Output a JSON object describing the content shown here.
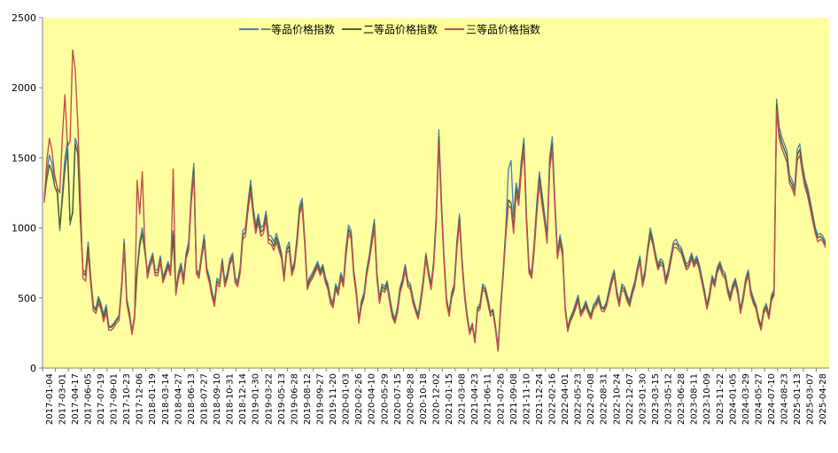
{
  "chart_data": {
    "type": "line",
    "title": "",
    "xlabel": "",
    "ylabel": "",
    "ylim": [
      0,
      2500
    ],
    "y_ticks": [
      0,
      500,
      1000,
      1500,
      2000,
      2500
    ],
    "grid": false,
    "legend_position": "top-center",
    "plot_background": "#FFFFA0",
    "x_tick_labels": [
      "2017-01-04",
      "2017-03-01",
      "2017-04-17",
      "2017-06-05",
      "2017-07-19",
      "2017-09-01",
      "2017-10-23",
      "2017-12-06",
      "2018-01-19",
      "2018-03-14",
      "2018-04-27",
      "2018-06-13",
      "2018-07-27",
      "2018-09-10",
      "2018-10-31",
      "2018-12-14",
      "2019-01-30",
      "2019-03-22",
      "2019-05-13",
      "2019-06-28",
      "2019-08-12",
      "2019-09-27",
      "2019-11-20",
      "2020-01-03",
      "2020-02-26",
      "2020-04-10",
      "2020-05-29",
      "2020-07-15",
      "2020-08-28",
      "2020-10-18",
      "2020-12-02",
      "2021-01-15",
      "2021-03-08",
      "2021-04-23",
      "2021-06-11",
      "2021-07-26",
      "2021-09-08",
      "2021-11-10",
      "2021-12-24",
      "2022-02-16",
      "2022-04-01",
      "2022-05-23",
      "2022-07-08",
      "2022-08-31",
      "2022-10-24",
      "2022-12-07",
      "2023-01-30",
      "2023-03-15",
      "2023-05-12",
      "2023-06-28",
      "2023-08-11",
      "2023-10-09",
      "2023-11-22",
      "2024-01-05",
      "2024-03-29",
      "2024-05-27",
      "2024-07-10",
      "2024-08-23",
      "2025-01-13",
      "2025-03-07",
      "2025-04-28"
    ],
    "series": [
      {
        "name": "一等品价格指数",
        "color": "#4F81BD",
        "values": [
          1230,
          1400,
          1520,
          1460,
          1350,
          1300,
          980,
          1250,
          1500,
          1620,
          1020,
          1120,
          1640,
          1580,
          1050,
          700,
          680,
          900,
          650,
          450,
          420,
          510,
          460,
          380,
          450,
          300,
          300,
          320,
          350,
          380,
          600,
          920,
          500,
          400,
          260,
          380,
          700,
          900,
          1000,
          860,
          690,
          760,
          820,
          700,
          700,
          800,
          650,
          700,
          760,
          700,
          980,
          560,
          680,
          750,
          640,
          820,
          900,
          1250,
          1460,
          700,
          680,
          820,
          950,
          720,
          650,
          550,
          480,
          640,
          620,
          780,
          620,
          680,
          780,
          820,
          650,
          620,
          720,
          980,
          1000,
          1180,
          1340,
          1150,
          1020,
          1100,
          1000,
          1020,
          1120,
          950,
          940,
          900,
          960,
          900,
          820,
          660,
          860,
          900,
          700,
          760,
          940,
          1160,
          1210,
          920,
          600,
          650,
          680,
          720,
          760,
          700,
          740,
          650,
          600,
          500,
          470,
          600,
          560,
          680,
          620,
          860,
          1020,
          980,
          700,
          560,
          350,
          480,
          540,
          700,
          800,
          940,
          1060,
          680,
          500,
          600,
          580,
          620,
          500,
          400,
          350,
          440,
          580,
          640,
          740,
          620,
          600,
          500,
          430,
          380,
          500,
          640,
          820,
          700,
          600,
          760,
          1100,
          1700,
          1200,
          800,
          500,
          400,
          540,
          600,
          900,
          1100,
          780,
          540,
          380,
          260,
          320,
          200,
          430,
          460,
          600,
          580,
          500,
          400,
          420,
          300,
          140,
          460,
          700,
          1000,
          1420,
          1480,
          1080,
          1320,
          1240,
          1480,
          1640,
          1100,
          720,
          680,
          900,
          1180,
          1400,
          1250,
          1100,
          950,
          1500,
          1650,
          1200,
          820,
          950,
          850,
          440,
          290,
          360,
          400,
          460,
          520,
          400,
          430,
          480,
          420,
          380,
          450,
          480,
          520,
          440,
          430,
          470,
          560,
          640,
          700,
          560,
          470,
          600,
          580,
          520,
          480,
          560,
          620,
          720,
          800,
          620,
          700,
          860,
          1000,
          920,
          820,
          740,
          780,
          760,
          640,
          700,
          800,
          900,
          920,
          880,
          860,
          800,
          740,
          760,
          820,
          760,
          800,
          740,
          650,
          560,
          450,
          540,
          660,
          620,
          720,
          760,
          700,
          680,
          580,
          520,
          600,
          640,
          560,
          420,
          520,
          640,
          700,
          560,
          500,
          450,
          360,
          300,
          420,
          460,
          380,
          520,
          560,
          1920,
          1720,
          1650,
          1600,
          1550,
          1380,
          1340,
          1290,
          1560,
          1600,
          1450,
          1350,
          1290,
          1200,
          1100,
          1000,
          950,
          960,
          940,
          900
        ]
      },
      {
        "name": "二等品价格指数",
        "color": "#4F6228",
        "values": [
          1200,
          1350,
          1450,
          1400,
          1300,
          1250,
          1000,
          1200,
          1420,
          1560,
          1050,
          1100,
          1600,
          1530,
          1050,
          680,
          660,
          870,
          630,
          440,
          410,
          490,
          440,
          360,
          430,
          290,
          290,
          310,
          340,
          360,
          580,
          890,
          480,
          380,
          250,
          360,
          680,
          870,
          960,
          830,
          670,
          740,
          800,
          680,
          680,
          780,
          630,
          680,
          740,
          680,
          950,
          540,
          660,
          730,
          620,
          800,
          870,
          1210,
          1420,
          690,
          660,
          800,
          920,
          700,
          630,
          530,
          460,
          620,
          600,
          760,
          600,
          660,
          760,
          800,
          630,
          600,
          700,
          950,
          970,
          1150,
          1300,
          1120,
          990,
          1070,
          970,
          990,
          1090,
          920,
          910,
          870,
          930,
          870,
          800,
          640,
          840,
          870,
          680,
          740,
          910,
          1130,
          1180,
          900,
          580,
          630,
          660,
          700,
          740,
          680,
          720,
          630,
          580,
          480,
          450,
          580,
          540,
          660,
          600,
          830,
          990,
          950,
          680,
          540,
          340,
          460,
          520,
          680,
          780,
          910,
          1030,
          660,
          480,
          580,
          560,
          600,
          480,
          380,
          340,
          420,
          560,
          620,
          720,
          600,
          580,
          480,
          420,
          370,
          480,
          620,
          800,
          680,
          580,
          740,
          1070,
          1650,
          1170,
          780,
          480,
          390,
          520,
          580,
          870,
          1070,
          760,
          520,
          370,
          250,
          310,
          190,
          420,
          440,
          580,
          560,
          480,
          390,
          410,
          290,
          130,
          440,
          680,
          970,
          1200,
          1180,
          1000,
          1280,
          1200,
          1440,
          1600,
          1070,
          700,
          660,
          870,
          1140,
          1360,
          1210,
          1070,
          920,
          1460,
          1600,
          1170,
          800,
          920,
          830,
          430,
          280,
          350,
          390,
          440,
          500,
          390,
          420,
          460,
          410,
          370,
          440,
          460,
          500,
          430,
          420,
          460,
          540,
          620,
          680,
          540,
          460,
          580,
          560,
          500,
          460,
          540,
          600,
          700,
          780,
          600,
          680,
          840,
          970,
          900,
          800,
          720,
          760,
          740,
          620,
          680,
          780,
          880,
          890,
          860,
          840,
          780,
          720,
          740,
          800,
          740,
          780,
          720,
          630,
          540,
          440,
          520,
          640,
          600,
          700,
          740,
          680,
          660,
          560,
          500,
          580,
          620,
          540,
          410,
          500,
          620,
          680,
          540,
          480,
          440,
          350,
          290,
          410,
          440,
          370,
          500,
          540,
          1880,
          1680,
          1610,
          1560,
          1510,
          1350,
          1310,
          1260,
          1520,
          1560,
          1420,
          1320,
          1260,
          1170,
          1080,
          980,
          930,
          940,
          920,
          880
        ]
      },
      {
        "name": "三等品价格指数",
        "color": "#C0504D",
        "values": [
          1180,
          1480,
          1640,
          1550,
          1380,
          1290,
          1250,
          1650,
          1950,
          1580,
          1620,
          2270,
          2130,
          1750,
          1200,
          640,
          620,
          820,
          600,
          410,
          390,
          460,
          420,
          330,
          400,
          270,
          270,
          290,
          320,
          340,
          560,
          860,
          460,
          360,
          240,
          350,
          1340,
          1100,
          1400,
          880,
          640,
          720,
          780,
          660,
          660,
          760,
          610,
          660,
          720,
          660,
          1420,
          520,
          640,
          710,
          600,
          780,
          840,
          1180,
          1380,
          670,
          640,
          780,
          890,
          680,
          610,
          510,
          440,
          600,
          580,
          740,
          580,
          640,
          740,
          780,
          610,
          580,
          680,
          920,
          940,
          1120,
          1260,
          1090,
          960,
          1040,
          940,
          960,
          1060,
          890,
          880,
          840,
          900,
          840,
          780,
          620,
          820,
          840,
          660,
          720,
          880,
          1100,
          1150,
          880,
          560,
          610,
          640,
          680,
          720,
          660,
          700,
          610,
          560,
          460,
          430,
          560,
          520,
          640,
          580,
          800,
          960,
          920,
          660,
          520,
          320,
          440,
          500,
          660,
          760,
          880,
          1000,
          640,
          460,
          560,
          540,
          580,
          460,
          360,
          320,
          400,
          540,
          600,
          700,
          580,
          560,
          460,
          400,
          350,
          460,
          600,
          780,
          660,
          560,
          720,
          1040,
          1600,
          1140,
          760,
          460,
          370,
          500,
          560,
          840,
          1040,
          740,
          500,
          350,
          240,
          300,
          180,
          400,
          420,
          560,
          540,
          460,
          370,
          390,
          270,
          120,
          420,
          660,
          940,
          1160,
          1140,
          960,
          1240,
          1160,
          1400,
          1560,
          1040,
          680,
          640,
          840,
          1100,
          1320,
          1170,
          1040,
          890,
          1420,
          1560,
          1140,
          780,
          890,
          800,
          410,
          260,
          330,
          370,
          420,
          480,
          370,
          400,
          440,
          390,
          350,
          420,
          440,
          480,
          410,
          400,
          440,
          520,
          600,
          660,
          520,
          440,
          560,
          540,
          480,
          440,
          520,
          580,
          680,
          760,
          580,
          660,
          820,
          940,
          880,
          780,
          700,
          740,
          720,
          600,
          660,
          760,
          860,
          860,
          840,
          820,
          760,
          700,
          720,
          780,
          720,
          760,
          700,
          610,
          520,
          420,
          500,
          620,
          580,
          680,
          720,
          660,
          640,
          540,
          480,
          560,
          600,
          520,
          390,
          480,
          600,
          660,
          520,
          460,
          420,
          330,
          270,
          390,
          420,
          350,
          480,
          520,
          1840,
          1640,
          1570,
          1520,
          1470,
          1320,
          1280,
          1230,
          1480,
          1520,
          1390,
          1290,
          1230,
          1140,
          1050,
          960,
          900,
          920,
          900,
          860
        ]
      }
    ]
  }
}
